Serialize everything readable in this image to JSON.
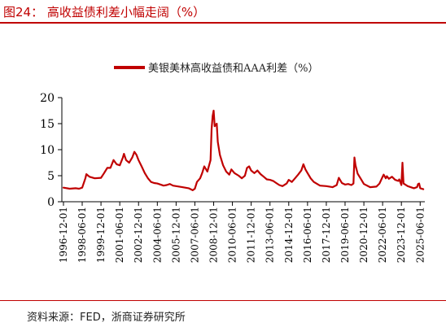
{
  "figure": {
    "title": "图24：  高收益债利差小幅走阔（%）",
    "source": "资料来源：FED，浙商证券研究所"
  },
  "chart_data": {
    "type": "line",
    "title": "",
    "xlabel": "",
    "ylabel": "",
    "ylim": [
      0,
      20
    ],
    "yticks": [
      0,
      5,
      10,
      15,
      20
    ],
    "xticks": [
      "1996-12-01",
      "1998-06-01",
      "1999-12-01",
      "2001-06-01",
      "2002-12-01",
      "2004-06-01",
      "2005-12-01",
      "2007-06-01",
      "2008-12-01",
      "2010-06-01",
      "2011-12-01",
      "2013-06-01",
      "2014-12-01",
      "2016-06-01",
      "2017-12-01",
      "2019-06-01",
      "2020-12-01",
      "2022-06-01",
      "2023-12-01",
      "2025-06-01"
    ],
    "legend_position": "top-center",
    "grid": false,
    "color": "#c00000",
    "series": [
      {
        "name": "美银美林高收益债和AAA利差（%）",
        "x": [
          "1996-12-01",
          "1997-06-01",
          "1997-12-01",
          "1998-03-01",
          "1998-06-01",
          "1998-09-01",
          "1998-10-01",
          "1999-01-01",
          "1999-06-01",
          "1999-12-01",
          "2000-03-01",
          "2000-06-01",
          "2000-09-01",
          "2000-12-01",
          "2001-03-01",
          "2001-06-01",
          "2001-09-01",
          "2001-10-01",
          "2001-12-01",
          "2002-03-01",
          "2002-06-01",
          "2002-08-01",
          "2002-10-01",
          "2002-12-01",
          "2003-03-01",
          "2003-06-01",
          "2003-09-01",
          "2003-12-01",
          "2004-03-01",
          "2004-06-01",
          "2004-12-01",
          "2005-03-01",
          "2005-06-01",
          "2005-09-01",
          "2005-12-01",
          "2006-06-01",
          "2006-12-01",
          "2007-04-01",
          "2007-06-01",
          "2007-08-01",
          "2007-11-01",
          "2008-01-01",
          "2008-03-01",
          "2008-06-01",
          "2008-09-01",
          "2008-10-01",
          "2008-11-01",
          "2008-12-01",
          "2009-01-01",
          "2009-03-01",
          "2009-04-01",
          "2009-06-01",
          "2009-09-01",
          "2009-12-01",
          "2010-03-01",
          "2010-05-01",
          "2010-08-01",
          "2010-12-01",
          "2011-03-01",
          "2011-06-01",
          "2011-08-01",
          "2011-10-01",
          "2011-12-01",
          "2012-03-01",
          "2012-06-01",
          "2012-09-01",
          "2012-12-01",
          "2013-03-01",
          "2013-06-01",
          "2013-09-01",
          "2013-12-01",
          "2014-03-01",
          "2014-06-01",
          "2014-10-01",
          "2014-12-01",
          "2015-03-01",
          "2015-06-01",
          "2015-09-01",
          "2015-12-01",
          "2016-02-01",
          "2016-04-01",
          "2016-06-01",
          "2016-09-01",
          "2016-12-01",
          "2017-06-01",
          "2017-12-01",
          "2018-06-01",
          "2018-10-01",
          "2018-12-01",
          "2019-03-01",
          "2019-06-01",
          "2019-09-01",
          "2019-12-01",
          "2020-02-01",
          "2020-03-01",
          "2020-04-01",
          "2020-06-01",
          "2020-09-01",
          "2020-12-01",
          "2021-06-01",
          "2021-12-01",
          "2022-03-01",
          "2022-06-01",
          "2022-07-01",
          "2022-09-01",
          "2022-10-01",
          "2022-12-01",
          "2023-03-01",
          "2023-06-01",
          "2023-09-01",
          "2023-10-01",
          "2023-12-01",
          "2024-01-01",
          "2024-02-01",
          "2024-06-01",
          "2024-12-01",
          "2025-03-01",
          "2025-04-01",
          "2025-05-01",
          "2025-06-01",
          "2025-09-01"
        ],
        "values": [
          2.7,
          2.5,
          2.6,
          2.5,
          2.7,
          4.5,
          5.3,
          4.8,
          4.5,
          4.6,
          5.5,
          6.5,
          6.5,
          8.0,
          7.2,
          7.0,
          8.5,
          9.2,
          8.0,
          7.5,
          8.5,
          9.6,
          9.0,
          8.0,
          6.8,
          5.5,
          4.5,
          3.8,
          3.6,
          3.5,
          3.1,
          3.2,
          3.4,
          3.1,
          3.0,
          2.8,
          2.6,
          2.2,
          2.5,
          3.8,
          4.5,
          5.5,
          6.8,
          5.8,
          8.0,
          14.0,
          16.5,
          17.5,
          14.5,
          15.0,
          11.5,
          9.0,
          7.0,
          5.8,
          5.2,
          6.2,
          5.5,
          5.0,
          4.5,
          5.0,
          6.5,
          6.8,
          6.0,
          5.5,
          6.0,
          5.3,
          4.8,
          4.3,
          4.2,
          4.0,
          3.6,
          3.2,
          3.0,
          3.5,
          4.2,
          3.8,
          4.5,
          5.2,
          6.0,
          7.2,
          6.2,
          5.5,
          4.5,
          3.8,
          3.1,
          3.0,
          2.8,
          3.2,
          4.6,
          3.6,
          3.3,
          3.4,
          3.2,
          3.5,
          8.5,
          7.0,
          5.4,
          4.4,
          3.4,
          2.8,
          2.9,
          3.5,
          4.8,
          5.2,
          4.5,
          4.9,
          4.4,
          4.8,
          4.2,
          4.0,
          4.3,
          3.2,
          7.5,
          3.5,
          3.0,
          2.6,
          2.8,
          3.4,
          3.5,
          2.6,
          2.4
        ]
      }
    ]
  }
}
